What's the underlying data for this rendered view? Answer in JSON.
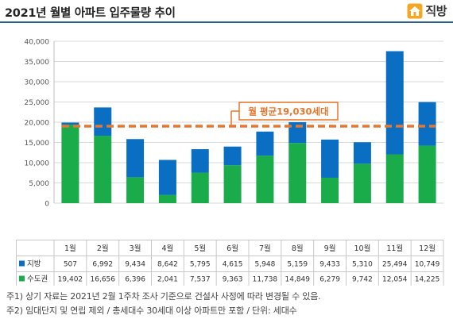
{
  "header": {
    "title": "2021년 월별 아파트 입주물량 추이",
    "logo_text": "직방"
  },
  "chart_data": {
    "type": "bar",
    "stacked": true,
    "categories": [
      "1월",
      "2월",
      "3월",
      "4월",
      "5월",
      "6월",
      "7월",
      "8월",
      "9월",
      "10월",
      "11월",
      "12월"
    ],
    "series": [
      {
        "name": "수도권",
        "color": "#1aab4b",
        "values": [
          19402,
          16656,
          6396,
          2041,
          7537,
          9363,
          11738,
          14849,
          6279,
          9742,
          12054,
          14225
        ],
        "labels": [
          "19,402",
          "16,656",
          "6,396",
          "2,041",
          "7,537",
          "9,363",
          "11,738",
          "14,849",
          "6,279",
          "9,742",
          "12,054",
          "14,225"
        ]
      },
      {
        "name": "지방",
        "color": "#0a6fc2",
        "values": [
          507,
          6992,
          9434,
          8642,
          5795,
          4615,
          5948,
          5159,
          9433,
          5310,
          25494,
          10749
        ],
        "labels": [
          "507",
          "6,992",
          "9,434",
          "8,642",
          "5,795",
          "4,615",
          "5,948",
          "5,159",
          "9,433",
          "5,310",
          "25,494",
          "10,749"
        ]
      }
    ],
    "ylim": [
      0,
      40000
    ],
    "yticks": [
      0,
      5000,
      10000,
      15000,
      20000,
      25000,
      30000,
      35000,
      40000
    ],
    "ytick_labels": [
      "0",
      "5,000",
      "10,000",
      "15,000",
      "20,000",
      "25,000",
      "30,000",
      "35,000",
      "40,000"
    ],
    "average": {
      "value": 19030,
      "label": "월 평균19,030세대",
      "color": "#e8762c"
    },
    "grid": true,
    "legend": "table"
  },
  "footnotes": [
    "주1) 상기 자료는 2021년 2월 1주차 조사 기준으로 건설사 사정에 따라 변경될 수 있음.",
    "주2) 임대단지 및 연립 제외 / 총세대수 30세대 이상 아파트만 포함 / 단위: 세대수"
  ]
}
